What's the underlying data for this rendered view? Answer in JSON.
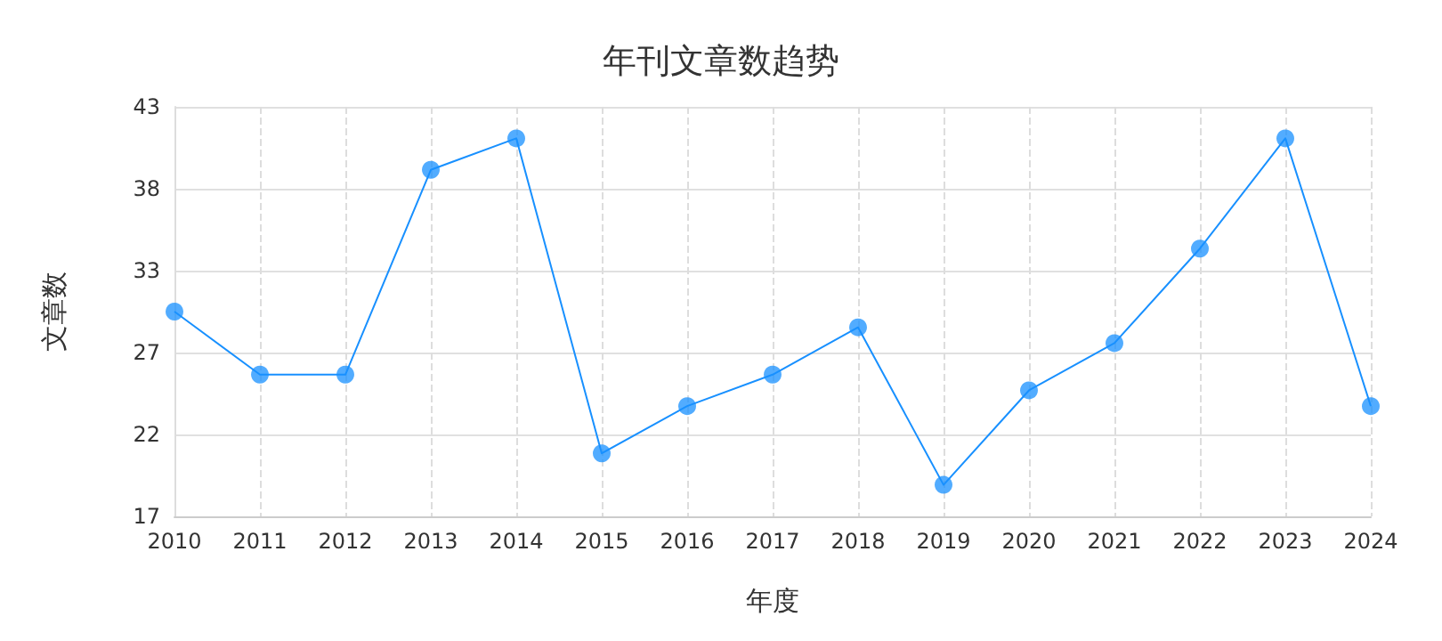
{
  "chart_data": {
    "type": "line",
    "title": "年刊文章数趋势",
    "xlabel": "年度",
    "ylabel": "文章数",
    "categories": [
      "2010",
      "2011",
      "2012",
      "2013",
      "2014",
      "2015",
      "2016",
      "2017",
      "2018",
      "2019",
      "2020",
      "2021",
      "2022",
      "2023",
      "2024"
    ],
    "series": [
      {
        "color": "#1890ff",
        "values": [
          30,
          26,
          26,
          39,
          41,
          21,
          24,
          26,
          29,
          19,
          25,
          28,
          34,
          41,
          24
        ]
      }
    ],
    "ylim": [
      17,
      43
    ],
    "yticks": [
      17,
      {
        "value": 22.2,
        "label": "22"
      },
      {
        "value": 27.4,
        "label": "27"
      },
      {
        "value": 32.6,
        "label": "33"
      },
      {
        "value": 37.8,
        "label": "38"
      },
      43
    ],
    "grid": true,
    "marker": "circle",
    "line_style": "solid"
  }
}
